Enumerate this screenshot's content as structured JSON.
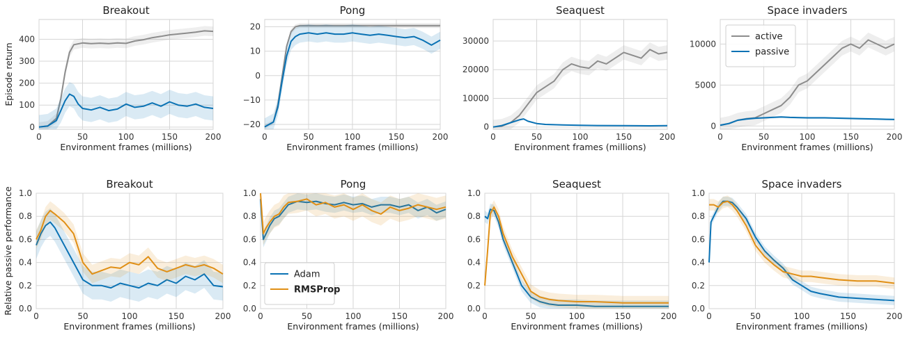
{
  "colors": {
    "active": "#8c8c8c",
    "passive": "#0a72b4",
    "adam": "#0a72b4",
    "rmsprop": "#e08f15",
    "grid": "#d6d6d6",
    "frame": "#cfcfcf"
  },
  "chart_data": [
    {
      "type": "line",
      "row": 0,
      "col": 0,
      "title": "Breakout",
      "xlabel": "Environment frames (millions)",
      "ylabel": "Episode return",
      "xlim": [
        0,
        200
      ],
      "ylim": [
        -10,
        490
      ],
      "xticks": [
        0,
        50,
        100,
        150,
        200
      ],
      "yticks": [
        0,
        100,
        200,
        300,
        400
      ],
      "grid": true,
      "legend": null,
      "series": [
        {
          "key": "active",
          "color_key": "active",
          "band": 22,
          "x": [
            0,
            10,
            20,
            25,
            30,
            35,
            40,
            50,
            60,
            70,
            80,
            90,
            100,
            110,
            120,
            130,
            140,
            150,
            160,
            170,
            180,
            190,
            200
          ],
          "y": [
            0,
            5,
            40,
            130,
            250,
            340,
            375,
            383,
            380,
            382,
            380,
            383,
            381,
            392,
            398,
            407,
            413,
            420,
            424,
            428,
            432,
            438,
            436
          ]
        },
        {
          "key": "passive",
          "color_key": "passive",
          "band": 55,
          "x": [
            0,
            10,
            20,
            25,
            30,
            35,
            40,
            45,
            50,
            60,
            70,
            80,
            90,
            100,
            110,
            120,
            130,
            140,
            150,
            160,
            170,
            180,
            190,
            200
          ],
          "y": [
            0,
            5,
            30,
            75,
            120,
            150,
            140,
            105,
            85,
            78,
            90,
            75,
            82,
            105,
            90,
            95,
            110,
            95,
            115,
            100,
            95,
            105,
            90,
            85
          ]
        }
      ]
    },
    {
      "type": "line",
      "row": 0,
      "col": 1,
      "title": "Pong",
      "xlabel": "Environment frames (millions)",
      "ylabel": "",
      "xlim": [
        0,
        200
      ],
      "ylim": [
        -22,
        23
      ],
      "xticks": [
        0,
        50,
        100,
        150,
        200
      ],
      "yticks": [
        -20,
        -10,
        0,
        10,
        20
      ],
      "grid": true,
      "legend": null,
      "series": [
        {
          "key": "active",
          "color_key": "active",
          "band": 1,
          "x": [
            0,
            10,
            15,
            20,
            25,
            30,
            35,
            40,
            50,
            100,
            150,
            200
          ],
          "y": [
            -21,
            -19,
            -12,
            0,
            12,
            18,
            20,
            20.5,
            20.5,
            20.5,
            20.5,
            20.5
          ]
        },
        {
          "key": "passive",
          "color_key": "passive",
          "band": 3.5,
          "x": [
            0,
            10,
            15,
            20,
            25,
            30,
            35,
            40,
            50,
            60,
            70,
            80,
            90,
            100,
            110,
            120,
            130,
            140,
            150,
            160,
            170,
            180,
            190,
            200
          ],
          "y": [
            -21,
            -19,
            -13,
            -2,
            8,
            14,
            16,
            17,
            17.5,
            17,
            17.5,
            17,
            17,
            17.5,
            17,
            16.5,
            17,
            16.5,
            16,
            15.5,
            16,
            14.5,
            12.5,
            14.5
          ]
        }
      ]
    },
    {
      "type": "line",
      "row": 0,
      "col": 2,
      "title": "Seaquest",
      "xlabel": "Environment frames (millions)",
      "ylabel": "",
      "xlim": [
        0,
        200
      ],
      "ylim": [
        -800,
        37500
      ],
      "xticks": [
        0,
        50,
        100,
        150,
        200
      ],
      "yticks": [
        0,
        10000,
        20000,
        30000
      ],
      "grid": true,
      "legend": null,
      "series": [
        {
          "key": "active",
          "color_key": "active",
          "band": 2500,
          "x": [
            0,
            10,
            20,
            30,
            40,
            50,
            60,
            70,
            80,
            90,
            100,
            110,
            120,
            130,
            140,
            150,
            160,
            170,
            180,
            190,
            200
          ],
          "y": [
            0,
            300,
            1500,
            4000,
            8000,
            12000,
            14000,
            16000,
            20000,
            22000,
            21000,
            20500,
            23000,
            22000,
            24000,
            26000,
            25000,
            24000,
            27000,
            25500,
            26000
          ]
        },
        {
          "key": "passive",
          "color_key": "passive",
          "band": 250,
          "x": [
            0,
            10,
            20,
            30,
            35,
            40,
            50,
            60,
            80,
            100,
            120,
            150,
            180,
            200
          ],
          "y": [
            0,
            500,
            1500,
            2500,
            2800,
            2000,
            1200,
            900,
            700,
            600,
            500,
            450,
            400,
            450
          ]
        }
      ]
    },
    {
      "type": "line",
      "row": 0,
      "col": 3,
      "title": "Space invaders",
      "xlabel": "Environment frames (millions)",
      "ylabel": "",
      "xlim": [
        0,
        200
      ],
      "ylim": [
        -400,
        13000
      ],
      "xticks": [
        0,
        50,
        100,
        150,
        200
      ],
      "yticks": [
        0,
        5000,
        10000
      ],
      "grid": true,
      "legend": "top-left",
      "series": [
        {
          "key": "active",
          "color_key": "active",
          "label": "active",
          "band": 900,
          "x": [
            0,
            10,
            20,
            30,
            40,
            50,
            60,
            70,
            80,
            90,
            100,
            110,
            120,
            130,
            140,
            150,
            160,
            170,
            180,
            190,
            200
          ],
          "y": [
            100,
            300,
            700,
            900,
            1000,
            1500,
            2000,
            2500,
            3500,
            5000,
            5500,
            6500,
            7500,
            8500,
            9500,
            10000,
            9500,
            10500,
            10000,
            9500,
            10000
          ]
        },
        {
          "key": "passive",
          "color_key": "passive",
          "label": "passive",
          "band": 120,
          "x": [
            0,
            10,
            20,
            30,
            40,
            50,
            60,
            70,
            80,
            100,
            120,
            140,
            160,
            180,
            200
          ],
          "y": [
            100,
            300,
            700,
            850,
            950,
            1000,
            1050,
            1100,
            1050,
            1000,
            1000,
            950,
            900,
            850,
            800
          ]
        }
      ]
    },
    {
      "type": "line",
      "row": 1,
      "col": 0,
      "title": "Breakout",
      "xlabel": "Environment frames (millions)",
      "ylabel": "Relative passive performance",
      "xlim": [
        0,
        200
      ],
      "ylim": [
        0,
        1
      ],
      "xticks": [
        0,
        50,
        100,
        150,
        200
      ],
      "yticks": [
        0,
        0.2,
        0.4,
        0.6,
        0.8,
        1.0
      ],
      "grid": true,
      "legend": null,
      "series": [
        {
          "key": "adam",
          "color_key": "adam",
          "band": 0.12,
          "x": [
            0,
            5,
            10,
            15,
            20,
            30,
            40,
            50,
            60,
            70,
            80,
            90,
            100,
            110,
            120,
            130,
            140,
            150,
            160,
            170,
            180,
            190,
            200
          ],
          "y": [
            0.55,
            0.65,
            0.72,
            0.75,
            0.7,
            0.55,
            0.4,
            0.25,
            0.2,
            0.2,
            0.18,
            0.22,
            0.2,
            0.18,
            0.22,
            0.2,
            0.25,
            0.22,
            0.28,
            0.25,
            0.3,
            0.2,
            0.19
          ]
        },
        {
          "key": "rmsprop",
          "color_key": "rmsprop",
          "band": 0.08,
          "x": [
            0,
            5,
            10,
            15,
            20,
            30,
            40,
            50,
            60,
            70,
            80,
            90,
            100,
            110,
            120,
            130,
            140,
            150,
            160,
            170,
            180,
            190,
            200
          ],
          "y": [
            0.6,
            0.68,
            0.8,
            0.85,
            0.82,
            0.75,
            0.65,
            0.4,
            0.3,
            0.33,
            0.36,
            0.35,
            0.4,
            0.38,
            0.45,
            0.35,
            0.32,
            0.35,
            0.38,
            0.36,
            0.38,
            0.35,
            0.3
          ]
        }
      ]
    },
    {
      "type": "line",
      "row": 1,
      "col": 1,
      "title": "Pong",
      "xlabel": "Environment frames (millions)",
      "ylabel": "",
      "xlim": [
        0,
        200
      ],
      "ylim": [
        0,
        1
      ],
      "xticks": [
        0,
        50,
        100,
        150,
        200
      ],
      "yticks": [
        0,
        0.2,
        0.4,
        0.6,
        0.8,
        1.0
      ],
      "grid": true,
      "legend": "bottom-left",
      "series": [
        {
          "key": "adam",
          "color_key": "adam",
          "label": "Adam",
          "bold": false,
          "band": 0.07,
          "x": [
            0,
            3,
            6,
            10,
            15,
            20,
            25,
            30,
            40,
            50,
            60,
            70,
            80,
            90,
            100,
            110,
            120,
            130,
            140,
            150,
            160,
            170,
            180,
            190,
            200
          ],
          "y": [
            0.95,
            0.6,
            0.65,
            0.72,
            0.78,
            0.8,
            0.85,
            0.9,
            0.93,
            0.92,
            0.93,
            0.91,
            0.9,
            0.92,
            0.9,
            0.91,
            0.88,
            0.9,
            0.9,
            0.88,
            0.9,
            0.85,
            0.88,
            0.83,
            0.86
          ]
        },
        {
          "key": "rmsprop",
          "color_key": "rmsprop",
          "label": "RMSProp",
          "bold": true,
          "band": 0.1,
          "x": [
            0,
            3,
            6,
            10,
            15,
            20,
            25,
            30,
            40,
            50,
            60,
            70,
            80,
            90,
            100,
            110,
            120,
            130,
            140,
            150,
            160,
            170,
            180,
            190,
            200
          ],
          "y": [
            1.0,
            0.65,
            0.7,
            0.75,
            0.8,
            0.82,
            0.88,
            0.92,
            0.93,
            0.95,
            0.9,
            0.92,
            0.88,
            0.9,
            0.86,
            0.9,
            0.85,
            0.82,
            0.88,
            0.85,
            0.87,
            0.9,
            0.88,
            0.86,
            0.88
          ]
        }
      ]
    },
    {
      "type": "line",
      "row": 1,
      "col": 2,
      "title": "Seaquest",
      "xlabel": "Environment frames (millions)",
      "ylabel": "",
      "xlim": [
        0,
        200
      ],
      "ylim": [
        0,
        1
      ],
      "xticks": [
        0,
        50,
        100,
        150,
        200
      ],
      "yticks": [
        0,
        0.2,
        0.4,
        0.6,
        0.8,
        1.0
      ],
      "grid": true,
      "legend": null,
      "series": [
        {
          "key": "adam",
          "color_key": "adam",
          "band": 0.05,
          "x": [
            0,
            3,
            6,
            10,
            15,
            20,
            30,
            40,
            50,
            60,
            70,
            80,
            100,
            120,
            150,
            180,
            200
          ],
          "y": [
            0.8,
            0.78,
            0.86,
            0.85,
            0.75,
            0.6,
            0.4,
            0.2,
            0.1,
            0.06,
            0.04,
            0.03,
            0.03,
            0.02,
            0.02,
            0.02,
            0.02
          ]
        },
        {
          "key": "rmsprop",
          "color_key": "rmsprop",
          "band": 0.06,
          "x": [
            0,
            3,
            6,
            10,
            15,
            20,
            30,
            40,
            50,
            60,
            70,
            80,
            100,
            120,
            150,
            180,
            200
          ],
          "y": [
            0.2,
            0.5,
            0.82,
            0.88,
            0.8,
            0.65,
            0.45,
            0.3,
            0.15,
            0.1,
            0.08,
            0.07,
            0.06,
            0.06,
            0.05,
            0.05,
            0.05
          ]
        }
      ]
    },
    {
      "type": "line",
      "row": 1,
      "col": 3,
      "title": "Space invaders",
      "xlabel": "Environment frames (millions)",
      "ylabel": "",
      "xlim": [
        0,
        200
      ],
      "ylim": [
        0,
        1
      ],
      "xticks": [
        0,
        50,
        100,
        150,
        200
      ],
      "yticks": [
        0,
        0.2,
        0.4,
        0.6,
        0.8,
        1.0
      ],
      "grid": true,
      "legend": null,
      "series": [
        {
          "key": "adam",
          "color_key": "adam",
          "band": 0.04,
          "x": [
            0,
            2,
            5,
            10,
            15,
            20,
            25,
            30,
            40,
            50,
            60,
            70,
            80,
            90,
            100,
            110,
            120,
            140,
            160,
            180,
            200
          ],
          "y": [
            0.4,
            0.75,
            0.8,
            0.88,
            0.93,
            0.93,
            0.92,
            0.88,
            0.78,
            0.62,
            0.5,
            0.42,
            0.35,
            0.25,
            0.2,
            0.15,
            0.13,
            0.1,
            0.09,
            0.08,
            0.07
          ]
        },
        {
          "key": "rmsprop",
          "color_key": "rmsprop",
          "band": 0.05,
          "x": [
            0,
            5,
            10,
            15,
            20,
            25,
            30,
            40,
            50,
            60,
            70,
            80,
            90,
            100,
            110,
            120,
            140,
            160,
            180,
            200
          ],
          "y": [
            0.9,
            0.9,
            0.88,
            0.92,
            0.93,
            0.9,
            0.85,
            0.72,
            0.55,
            0.45,
            0.38,
            0.32,
            0.3,
            0.28,
            0.28,
            0.27,
            0.25,
            0.24,
            0.24,
            0.22
          ]
        }
      ]
    }
  ]
}
